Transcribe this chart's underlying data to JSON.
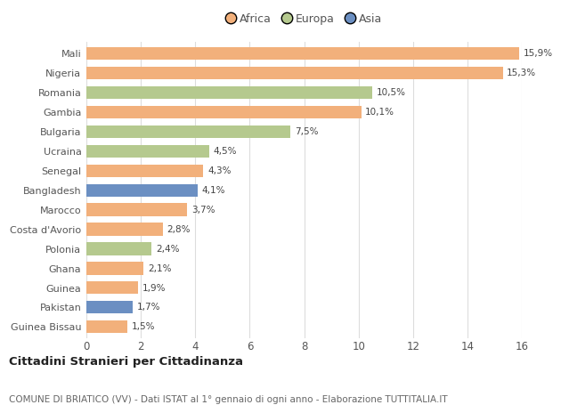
{
  "countries": [
    "Mali",
    "Nigeria",
    "Romania",
    "Gambia",
    "Bulgaria",
    "Ucraina",
    "Senegal",
    "Bangladesh",
    "Marocco",
    "Costa d'Avorio",
    "Polonia",
    "Ghana",
    "Guinea",
    "Pakistan",
    "Guinea Bissau"
  ],
  "values": [
    15.9,
    15.3,
    10.5,
    10.1,
    7.5,
    4.5,
    4.3,
    4.1,
    3.7,
    2.8,
    2.4,
    2.1,
    1.9,
    1.7,
    1.5
  ],
  "continents": [
    "Africa",
    "Africa",
    "Europa",
    "Africa",
    "Europa",
    "Europa",
    "Africa",
    "Asia",
    "Africa",
    "Africa",
    "Europa",
    "Africa",
    "Africa",
    "Asia",
    "Africa"
  ],
  "colors": {
    "Africa": "#F2B07B",
    "Europa": "#B5C98E",
    "Asia": "#6B8FC2"
  },
  "legend_labels": [
    "Africa",
    "Europa",
    "Asia"
  ],
  "legend_colors": [
    "#F2B07B",
    "#B5C98E",
    "#6B8FC2"
  ],
  "title": "Cittadini Stranieri per Cittadinanza",
  "subtitle": "COMUNE DI BRIATICO (VV) - Dati ISTAT al 1° gennaio di ogni anno - Elaborazione TUTTITALIA.IT",
  "xlim": [
    0,
    16
  ],
  "xticks": [
    0,
    2,
    4,
    6,
    8,
    10,
    12,
    14,
    16
  ],
  "background_color": "#ffffff",
  "grid_color": "#dddddd"
}
